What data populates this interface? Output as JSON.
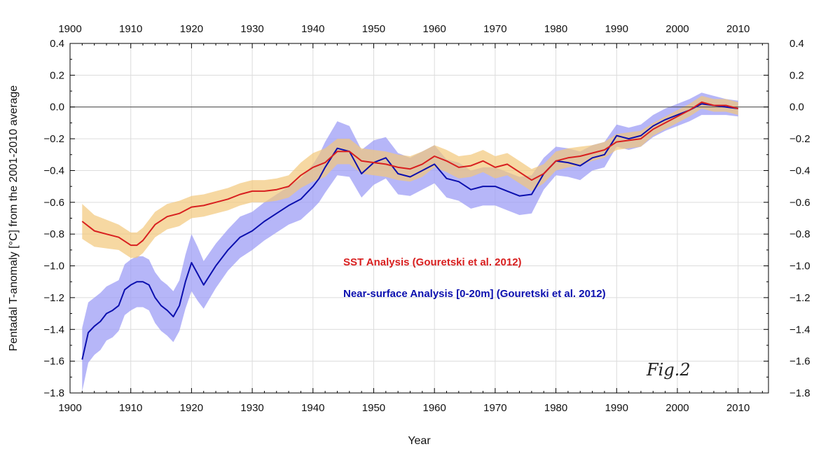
{
  "chart_data": {
    "type": "line",
    "title": "",
    "xlabel": "Year",
    "ylabel": "Pentadal T-anomaly [°C] from the 2001-2010 average",
    "xlim": [
      1900,
      2015
    ],
    "ylim": [
      -1.8,
      0.4
    ],
    "xticks": [
      1900,
      1910,
      1920,
      1930,
      1940,
      1950,
      1960,
      1970,
      1980,
      1990,
      2000,
      2010
    ],
    "yticks": [
      -1.8,
      -1.6,
      -1.4,
      -1.2,
      -1.0,
      -0.8,
      -0.6,
      -0.4,
      -0.2,
      0.0,
      0.2,
      0.4
    ],
    "ytick_labels": [
      "−1.8",
      "−1.6",
      "−1.4",
      "−1.2",
      "−1.0",
      "−0.8",
      "−0.6",
      "−0.4",
      "−0.2",
      "0.0",
      "0.2",
      "0.4"
    ],
    "grid": true,
    "figure_label": "Fig.2",
    "series": [
      {
        "name": "SST Analysis (Gouretski et al. 2012)",
        "color": "#d81f1f",
        "band_color": "#f2c77a",
        "x": [
          1902,
          1904,
          1906,
          1908,
          1910,
          1911,
          1912,
          1914,
          1916,
          1918,
          1920,
          1922,
          1924,
          1926,
          1928,
          1930,
          1932,
          1934,
          1936,
          1938,
          1940,
          1942,
          1944,
          1946,
          1948,
          1950,
          1952,
          1954,
          1956,
          1958,
          1960,
          1962,
          1964,
          1966,
          1968,
          1970,
          1972,
          1974,
          1976,
          1978,
          1980,
          1982,
          1984,
          1986,
          1988,
          1990,
          1992,
          1994,
          1996,
          1998,
          2000,
          2002,
          2004,
          2006,
          2008,
          2010
        ],
        "y": [
          -0.72,
          -0.78,
          -0.8,
          -0.82,
          -0.87,
          -0.87,
          -0.84,
          -0.74,
          -0.69,
          -0.67,
          -0.63,
          -0.62,
          -0.6,
          -0.58,
          -0.55,
          -0.53,
          -0.53,
          -0.52,
          -0.5,
          -0.43,
          -0.38,
          -0.35,
          -0.28,
          -0.28,
          -0.34,
          -0.35,
          -0.36,
          -0.38,
          -0.39,
          -0.36,
          -0.31,
          -0.34,
          -0.38,
          -0.37,
          -0.34,
          -0.38,
          -0.36,
          -0.41,
          -0.46,
          -0.42,
          -0.34,
          -0.32,
          -0.31,
          -0.29,
          -0.27,
          -0.22,
          -0.21,
          -0.2,
          -0.14,
          -0.1,
          -0.06,
          -0.02,
          0.03,
          0.01,
          0.01,
          -0.01
        ],
        "band": [
          0.11,
          0.1,
          0.09,
          0.08,
          0.08,
          0.08,
          0.08,
          0.08,
          0.08,
          0.08,
          0.07,
          0.07,
          0.07,
          0.07,
          0.07,
          0.07,
          0.07,
          0.07,
          0.07,
          0.08,
          0.09,
          0.09,
          0.08,
          0.08,
          0.08,
          0.08,
          0.08,
          0.08,
          0.08,
          0.08,
          0.07,
          0.07,
          0.07,
          0.07,
          0.07,
          0.07,
          0.07,
          0.07,
          0.07,
          0.06,
          0.06,
          0.06,
          0.06,
          0.05,
          0.05,
          0.05,
          0.05,
          0.05,
          0.04,
          0.04,
          0.04,
          0.04,
          0.04,
          0.04,
          0.04,
          0.04
        ]
      },
      {
        "name": "Near-surface Analysis [0-20m] (Gouretski et al. 2012)",
        "color": "#0b0fae",
        "band_color": "#9d9df5",
        "x": [
          1902,
          1903,
          1904,
          1905,
          1906,
          1907,
          1908,
          1909,
          1910,
          1911,
          1912,
          1913,
          1914,
          1915,
          1916,
          1917,
          1918,
          1919,
          1920,
          1921,
          1922,
          1924,
          1926,
          1928,
          1930,
          1932,
          1934,
          1936,
          1938,
          1940,
          1941,
          1942,
          1944,
          1946,
          1948,
          1950,
          1952,
          1954,
          1956,
          1958,
          1960,
          1962,
          1964,
          1966,
          1968,
          1970,
          1972,
          1974,
          1976,
          1978,
          1980,
          1982,
          1984,
          1986,
          1988,
          1990,
          1992,
          1994,
          1996,
          1998,
          2000,
          2002,
          2004,
          2006,
          2008,
          2010
        ],
        "y": [
          -1.59,
          -1.42,
          -1.38,
          -1.35,
          -1.3,
          -1.28,
          -1.25,
          -1.15,
          -1.12,
          -1.1,
          -1.1,
          -1.12,
          -1.2,
          -1.25,
          -1.28,
          -1.32,
          -1.25,
          -1.1,
          -0.98,
          -1.05,
          -1.12,
          -1.0,
          -0.9,
          -0.82,
          -0.78,
          -0.72,
          -0.67,
          -0.62,
          -0.58,
          -0.5,
          -0.45,
          -0.38,
          -0.26,
          -0.28,
          -0.42,
          -0.35,
          -0.32,
          -0.42,
          -0.44,
          -0.4,
          -0.36,
          -0.45,
          -0.47,
          -0.52,
          -0.5,
          -0.5,
          -0.53,
          -0.56,
          -0.55,
          -0.42,
          -0.34,
          -0.35,
          -0.37,
          -0.32,
          -0.3,
          -0.18,
          -0.2,
          -0.18,
          -0.12,
          -0.08,
          -0.05,
          -0.02,
          0.02,
          0.01,
          0.0,
          -0.01
        ],
        "band": [
          0.2,
          0.19,
          0.18,
          0.18,
          0.17,
          0.17,
          0.16,
          0.16,
          0.16,
          0.16,
          0.16,
          0.16,
          0.16,
          0.16,
          0.16,
          0.16,
          0.16,
          0.17,
          0.18,
          0.17,
          0.15,
          0.14,
          0.13,
          0.13,
          0.12,
          0.12,
          0.12,
          0.12,
          0.13,
          0.14,
          0.15,
          0.16,
          0.17,
          0.16,
          0.15,
          0.14,
          0.13,
          0.13,
          0.12,
          0.12,
          0.12,
          0.12,
          0.12,
          0.12,
          0.12,
          0.12,
          0.12,
          0.12,
          0.12,
          0.1,
          0.09,
          0.09,
          0.09,
          0.08,
          0.08,
          0.07,
          0.07,
          0.07,
          0.07,
          0.07,
          0.07,
          0.07,
          0.07,
          0.06,
          0.05,
          0.05
        ]
      }
    ]
  }
}
